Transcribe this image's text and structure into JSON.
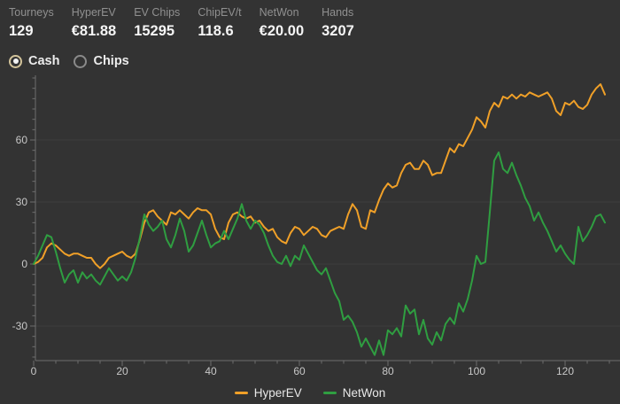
{
  "stats": {
    "items": [
      {
        "label": "Tourneys",
        "value": "129"
      },
      {
        "label": "HyperEV",
        "value": "€81.88"
      },
      {
        "label": "EV Chips",
        "value": "15295"
      },
      {
        "label": "ChipEV/t",
        "value": "118.6"
      },
      {
        "label": "NetWon",
        "value": "€20.00"
      },
      {
        "label": "Hands",
        "value": "3207"
      }
    ]
  },
  "view_toggle": {
    "options": [
      {
        "label": "Cash",
        "selected": true
      },
      {
        "label": "Chips",
        "selected": false
      }
    ]
  },
  "colors": {
    "background": "#333333",
    "gridline": "#3d3d3d",
    "axis": "#6e6e6e",
    "tick_label": "#c8c8c8",
    "stat_label": "#909090",
    "stat_value": "#f5f5f5",
    "accent_orange": "#f0a028",
    "accent_green": "#2f9e41",
    "radio_selected_ring": "#d2c39a"
  },
  "chart_data": {
    "type": "line",
    "x_is_index": true,
    "xlabel": "",
    "ylabel": "",
    "xlim": [
      0,
      132
    ],
    "ylim": [
      -47,
      91
    ],
    "x_ticks_major": [
      0,
      20,
      40,
      60,
      80,
      100,
      120
    ],
    "y_ticks_major": [
      60,
      30,
      0,
      -30
    ],
    "minor_tick_step": 5,
    "grid": "horizontal-majors-only",
    "legend_position": "bottom-center",
    "series": [
      {
        "name": "HyperEV",
        "color": "#f0a028",
        "values": [
          0,
          1,
          3,
          8,
          10,
          9,
          7,
          5,
          4,
          5,
          5,
          4,
          3,
          3,
          0,
          -2,
          0,
          3,
          4,
          5,
          6,
          4,
          3,
          5,
          12,
          20,
          25,
          26,
          23,
          21,
          19,
          25,
          24,
          26,
          24,
          22,
          25,
          27,
          26,
          26,
          24,
          17,
          13,
          12,
          20,
          24,
          25,
          23,
          22,
          23,
          20,
          21,
          18,
          16,
          17,
          13,
          11,
          10,
          15,
          18,
          17,
          14,
          16,
          18,
          17,
          14,
          13,
          16,
          17,
          18,
          17,
          24,
          29,
          26,
          18,
          17,
          26,
          25,
          31,
          36,
          39,
          37,
          38,
          44,
          48,
          49,
          46,
          46,
          50,
          48,
          43,
          44,
          44,
          50,
          56,
          54,
          58,
          57,
          61,
          65,
          71,
          69,
          66,
          74,
          78,
          76,
          81,
          80,
          82,
          80,
          82,
          81,
          83,
          82,
          81,
          82,
          83,
          80,
          74,
          72,
          78,
          77,
          79,
          76,
          75,
          77,
          82,
          85,
          87,
          82
        ]
      },
      {
        "name": "NetWon",
        "color": "#2f9e41",
        "values": [
          0,
          4,
          9,
          14,
          13,
          6,
          -2,
          -9,
          -5,
          -3,
          -9,
          -4,
          -7,
          -5,
          -8,
          -10,
          -6,
          -2,
          -5,
          -8,
          -6,
          -8,
          -4,
          3,
          13,
          24,
          19,
          16,
          18,
          21,
          12,
          8,
          14,
          22,
          16,
          6,
          9,
          15,
          21,
          14,
          8,
          10,
          11,
          16,
          12,
          17,
          22,
          29,
          21,
          17,
          21,
          19,
          15,
          9,
          4,
          1,
          0,
          4,
          -1,
          4,
          2,
          9,
          5,
          1,
          -3,
          -5,
          -2,
          -8,
          -14,
          -18,
          -27,
          -25,
          -28,
          -33,
          -40,
          -36,
          -40,
          -44,
          -37,
          -44,
          -32,
          -34,
          -31,
          -35,
          -20,
          -24,
          -22,
          -34,
          -27,
          -36,
          -39,
          -33,
          -37,
          -29,
          -26,
          -29,
          -19,
          -23,
          -17,
          -8,
          4,
          0,
          1,
          25,
          50,
          54,
          46,
          44,
          49,
          43,
          38,
          32,
          28,
          21,
          25,
          20,
          16,
          11,
          6,
          9,
          5,
          2,
          0,
          18,
          11,
          14,
          18,
          23,
          24,
          20
        ]
      }
    ]
  }
}
